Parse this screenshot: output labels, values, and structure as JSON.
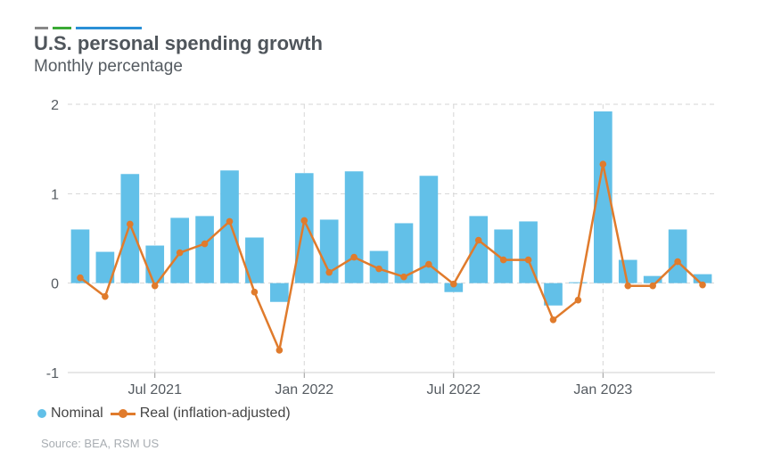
{
  "header": {
    "title": "U.S. personal spending growth",
    "subtitle": "Monthly percentage",
    "accent_colors": [
      "#888888",
      "#3aaa35",
      "#2a8fd6"
    ]
  },
  "legend": {
    "nominal_label": "Nominal",
    "real_label": "Real (inflation-adjusted)"
  },
  "source": "Source: BEA, RSM US",
  "colors": {
    "nominal": "#62c0e8",
    "real": "#e07b2c",
    "grid": "#d6d6d6",
    "axis_text": "#555b61"
  },
  "chart_data": {
    "type": "bar+line",
    "title": "U.S. personal spending growth",
    "subtitle": "Monthly percentage",
    "x_tick_labels": [
      {
        "label": "Jul 2021",
        "index": 3.5
      },
      {
        "label": "Jan 2022",
        "index": 9.5
      },
      {
        "label": "Jul 2022",
        "index": 15.5
      },
      {
        "label": "Jan 2023",
        "index": 21.5
      }
    ],
    "ylim": [
      -1,
      2
    ],
    "yticks": [
      -1,
      0,
      1,
      2
    ],
    "grid": true,
    "legend_position": "bottom-left",
    "series": [
      {
        "name": "Nominal",
        "kind": "bar",
        "values": [
          0.6,
          0.35,
          1.22,
          0.42,
          0.73,
          0.75,
          1.26,
          0.51,
          -0.21,
          1.23,
          0.71,
          1.25,
          0.36,
          0.67,
          1.2,
          -0.1,
          0.75,
          0.6,
          0.69,
          -0.25,
          0.01,
          1.92,
          0.26,
          0.08,
          0.6,
          0.1
        ]
      },
      {
        "name": "Real (inflation-adjusted)",
        "kind": "line",
        "values": [
          0.06,
          -0.15,
          0.66,
          -0.03,
          0.34,
          0.44,
          0.69,
          -0.1,
          -0.75,
          0.7,
          0.12,
          0.29,
          0.16,
          0.07,
          0.21,
          -0.01,
          0.48,
          0.26,
          0.26,
          -0.41,
          -0.19,
          1.33,
          -0.03,
          -0.03,
          0.24,
          -0.02
        ]
      }
    ]
  }
}
